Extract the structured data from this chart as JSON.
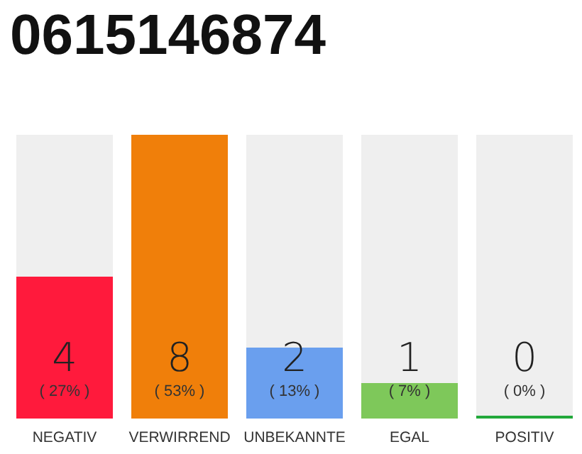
{
  "chart_data": {
    "type": "bar",
    "title": "0615146874",
    "categories": [
      "NEGATIV",
      "VERWIRREND",
      "UNBEKANNTE",
      "EGAL",
      "POSITIV"
    ],
    "values": [
      4,
      8,
      2,
      1,
      0
    ],
    "colors": [
      "#ff1a3c",
      "#f07f0a",
      "#6a9fee",
      "#7ec85a",
      "#22a83a"
    ],
    "value_labels": [
      "4\n( 27% )",
      "8\n( 53% )",
      "2\n( 13% )",
      "1\n( 7% )",
      "0\n( 0% )"
    ],
    "ylim": [
      0,
      8
    ],
    "tick_labels": "x"
  }
}
